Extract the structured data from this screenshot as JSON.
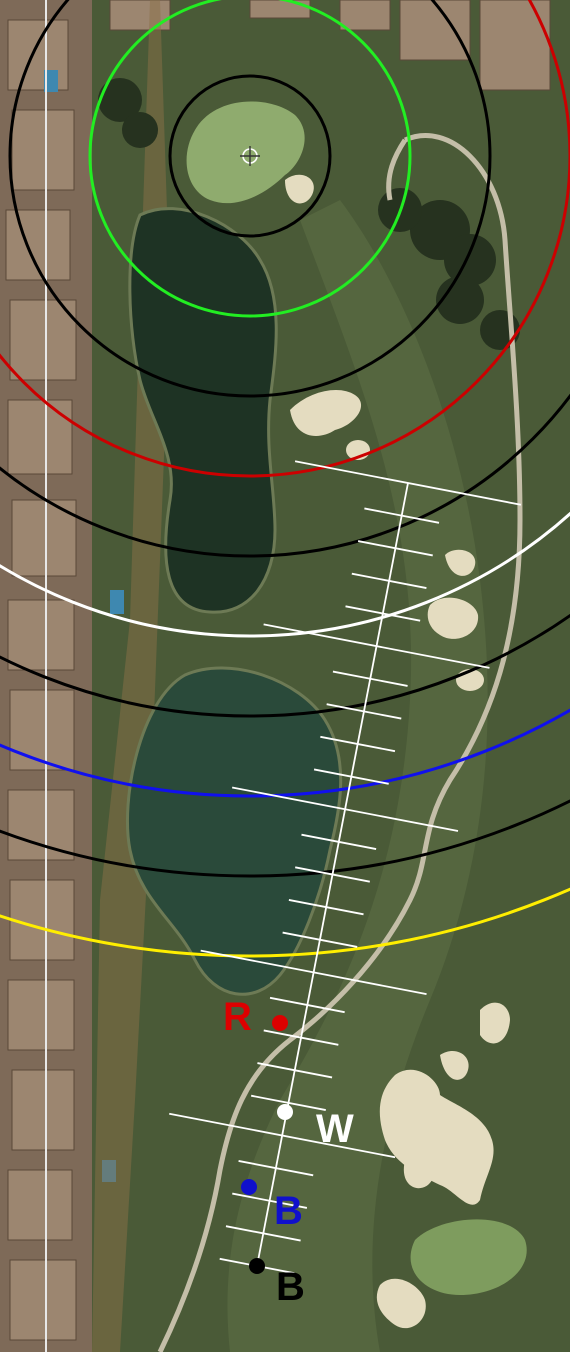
{
  "map": {
    "view": "satellite",
    "tee_markers": [
      {
        "label": "R",
        "color": "#dd0000"
      },
      {
        "label": "W",
        "color": "#ffffff"
      },
      {
        "label": "B",
        "color": "#1010cc"
      },
      {
        "label": "B",
        "color": "#000000"
      }
    ],
    "pin_marker": {
      "icon": "crosshair-pin-icon",
      "color": "#ffffff"
    },
    "distance_arcs": [
      {
        "color": "#000000"
      },
      {
        "color": "#22ee22"
      },
      {
        "color": "#000000"
      },
      {
        "color": "#cc0000"
      },
      {
        "color": "#000000"
      },
      {
        "color": "#ffffff"
      },
      {
        "color": "#000000"
      },
      {
        "color": "#1010ee"
      },
      {
        "color": "#000000"
      },
      {
        "color": "#ffee00"
      }
    ],
    "colors": {
      "rough": "#4a5a37",
      "fairway": "#5a6b45",
      "green": "#8fab6e",
      "water": "#223a2a",
      "bunker": "#e4dcc0",
      "cart_path": "#c4bea8",
      "houses": "#8a7460"
    }
  }
}
